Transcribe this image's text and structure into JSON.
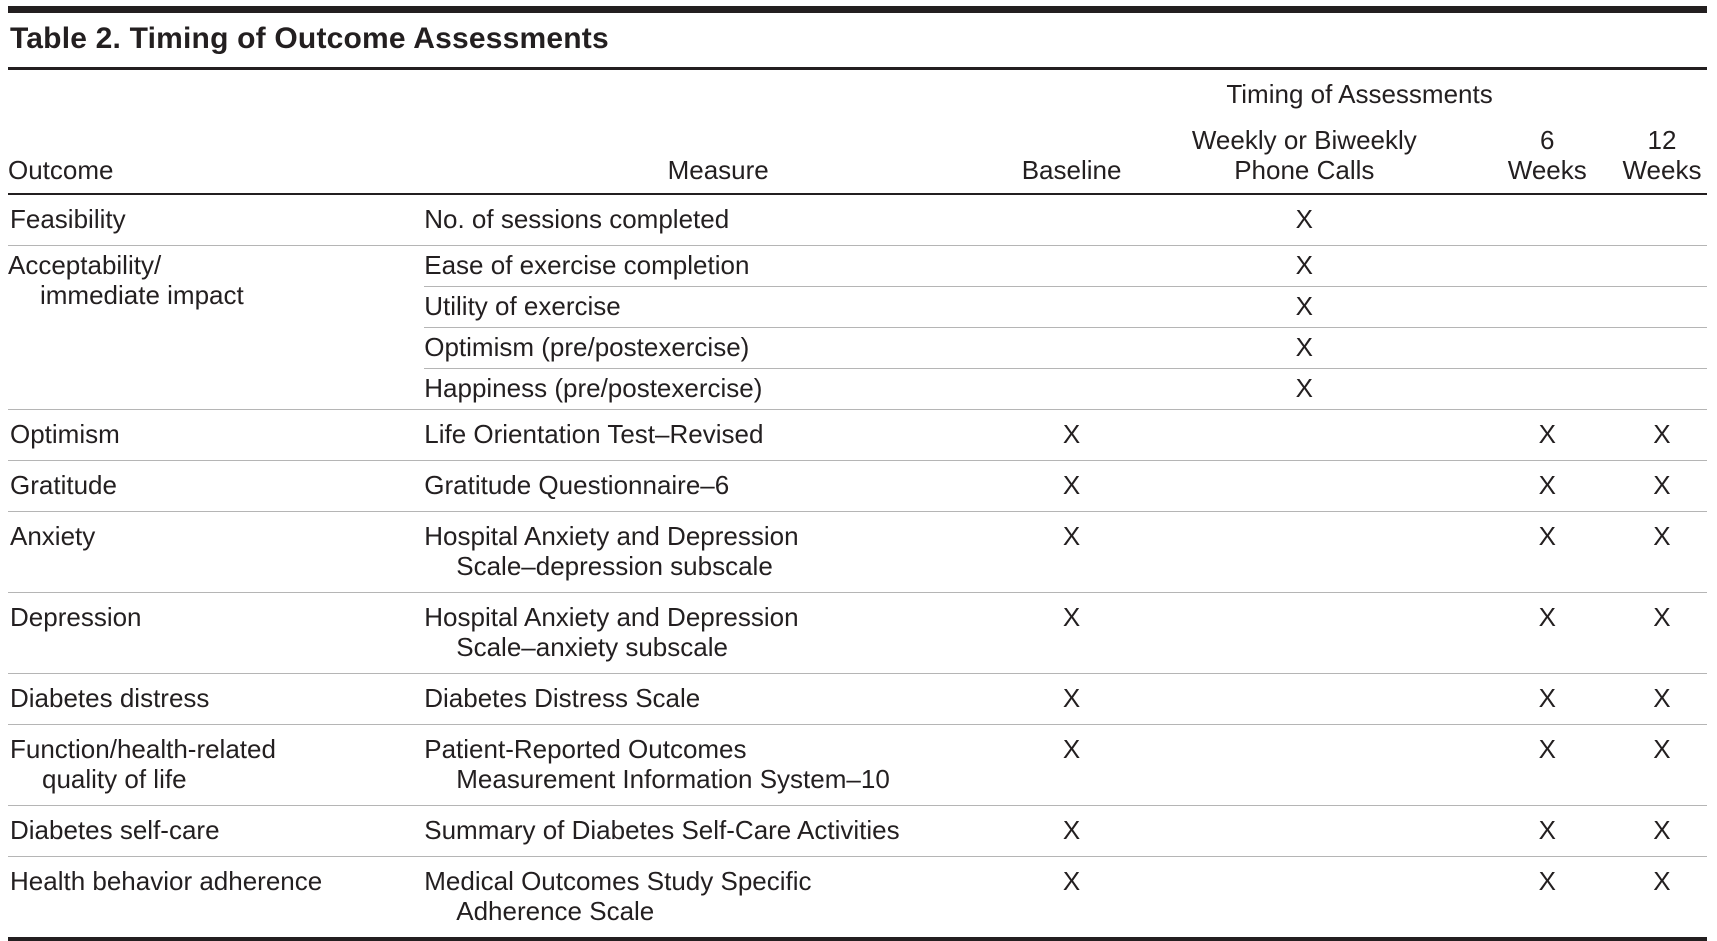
{
  "title": "Table 2. Timing of Outcome Assessments",
  "table": {
    "spanner": "Timing of Assessments",
    "columns": {
      "outcome": "Outcome",
      "measure": "Measure",
      "baseline": "Baseline",
      "phone_line1": "Weekly or Biweekly",
      "phone_line2": "Phone Calls",
      "six_weeks_line1": "6",
      "six_weeks_line2": "Weeks",
      "twelve_weeks_line1": "12",
      "twelve_weeks_line2": "Weeks"
    },
    "mark": "X",
    "groups": [
      {
        "outcome": [
          "Feasibility"
        ],
        "rows": [
          {
            "measure": [
              "No. of sessions completed"
            ],
            "baseline": false,
            "phone": true,
            "six_weeks": false,
            "twelve_weeks": false
          }
        ]
      },
      {
        "outcome": [
          "Acceptability/",
          "immediate impact"
        ],
        "rows": [
          {
            "measure": [
              "Ease of exercise completion"
            ],
            "baseline": false,
            "phone": true,
            "six_weeks": false,
            "twelve_weeks": false
          },
          {
            "measure": [
              "Utility of exercise"
            ],
            "baseline": false,
            "phone": true,
            "six_weeks": false,
            "twelve_weeks": false
          },
          {
            "measure": [
              "Optimism (pre/postexercise)"
            ],
            "baseline": false,
            "phone": true,
            "six_weeks": false,
            "twelve_weeks": false
          },
          {
            "measure": [
              "Happiness (pre/postexercise)"
            ],
            "baseline": false,
            "phone": true,
            "six_weeks": false,
            "twelve_weeks": false
          }
        ]
      },
      {
        "outcome": [
          "Optimism"
        ],
        "rows": [
          {
            "measure": [
              "Life Orientation Test–Revised"
            ],
            "baseline": true,
            "phone": false,
            "six_weeks": true,
            "twelve_weeks": true
          }
        ]
      },
      {
        "outcome": [
          "Gratitude"
        ],
        "rows": [
          {
            "measure": [
              "Gratitude Questionnaire–6"
            ],
            "baseline": true,
            "phone": false,
            "six_weeks": true,
            "twelve_weeks": true
          }
        ]
      },
      {
        "outcome": [
          "Anxiety"
        ],
        "rows": [
          {
            "measure": [
              "Hospital Anxiety and Depression",
              "Scale–depression subscale"
            ],
            "baseline": true,
            "phone": false,
            "six_weeks": true,
            "twelve_weeks": true
          }
        ]
      },
      {
        "outcome": [
          "Depression"
        ],
        "rows": [
          {
            "measure": [
              "Hospital Anxiety and Depression",
              "Scale–anxiety subscale"
            ],
            "baseline": true,
            "phone": false,
            "six_weeks": true,
            "twelve_weeks": true
          }
        ]
      },
      {
        "outcome": [
          "Diabetes distress"
        ],
        "rows": [
          {
            "measure": [
              "Diabetes Distress Scale"
            ],
            "baseline": true,
            "phone": false,
            "six_weeks": true,
            "twelve_weeks": true
          }
        ]
      },
      {
        "outcome": [
          "Function/health-related",
          "quality of life"
        ],
        "rows": [
          {
            "measure": [
              "Patient-Reported Outcomes",
              "Measurement Information System–10"
            ],
            "baseline": true,
            "phone": false,
            "six_weeks": true,
            "twelve_weeks": true
          }
        ]
      },
      {
        "outcome": [
          "Diabetes self-care"
        ],
        "rows": [
          {
            "measure": [
              "Summary of Diabetes Self-Care Activities"
            ],
            "baseline": true,
            "phone": false,
            "six_weeks": true,
            "twelve_weeks": true
          }
        ]
      },
      {
        "outcome": [
          "Health behavior adherence"
        ],
        "rows": [
          {
            "measure": [
              "Medical Outcomes Study Specific",
              "Adherence Scale"
            ],
            "baseline": true,
            "phone": false,
            "six_weeks": true,
            "twelve_weeks": true
          }
        ]
      }
    ],
    "colors": {
      "text": "#231f20",
      "rule_dark": "#231f20",
      "rule_light": "#b5b5b5"
    }
  }
}
